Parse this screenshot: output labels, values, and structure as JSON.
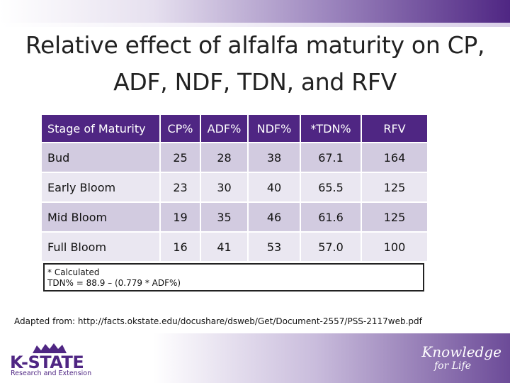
{
  "title": "Relative effect of alfalfa maturity on CP, ADF, NDF, TDN, and RFV",
  "table": {
    "headers": [
      "Stage of Maturity",
      "CP%",
      "ADF%",
      "NDF%",
      "*TDN%",
      "RFV"
    ],
    "rows": [
      [
        "Bud",
        "25",
        "28",
        "38",
        "67.1",
        "164"
      ],
      [
        "Early Bloom",
        "23",
        "30",
        "40",
        "65.5",
        "125"
      ],
      [
        "Mid Bloom",
        "19",
        "35",
        "46",
        "61.6",
        "125"
      ],
      [
        "Full Bloom",
        "16",
        "41",
        "53",
        "57.0",
        "100"
      ]
    ]
  },
  "note": {
    "line1": "* Calculated",
    "line2": "TDN% = 88.9 – (0.779 * ADF%)"
  },
  "source": "Adapted from: http://facts.okstate.edu/docushare/dsweb/Get/Document-2557/PSS-2117web.pdf",
  "logo": {
    "name": "K-STATE",
    "subtitle": "Research and Extension"
  },
  "brand": {
    "line1": "Knowledge",
    "line2": "for Life"
  },
  "colors": {
    "purple": "#4f2683",
    "row_dark": "#d2cbe0",
    "row_light": "#eae7f1"
  }
}
